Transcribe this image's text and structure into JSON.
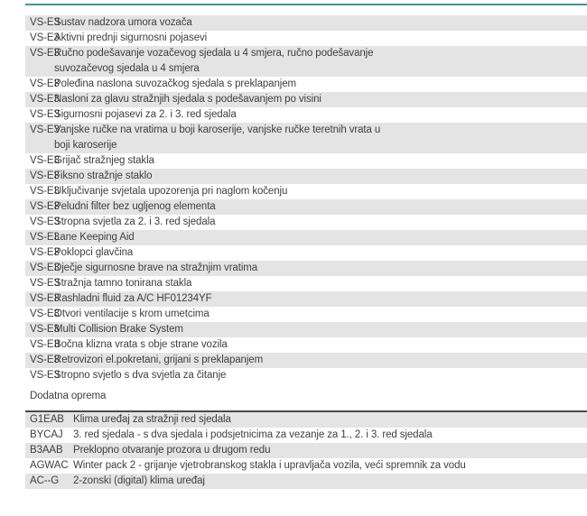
{
  "colors": {
    "accent_teal": "#43939c",
    "row_shade": "#e4e4e4",
    "dark_border": "#4a4a4a",
    "text": "#3f3f3f",
    "page_bg": "#ffffff"
  },
  "section_heading": "Dodatna oprema",
  "standard_equipment": {
    "rows": [
      {
        "code": "VS-E3",
        "description": "Sustav nadzora umora vozača"
      },
      {
        "code": "VS-E3",
        "description": "Aktivni prednji sigurnosni pojasevi"
      },
      {
        "code": "VS-E3",
        "description": "Ručno podešavanje vozačevog sjedala u 4 smjera, ručno podešavanje\nsuvozačevog sjedala u 4 smjera"
      },
      {
        "code": "VS-E3",
        "description": "Poleđina naslona suvozačkog sjedala s preklapanjem"
      },
      {
        "code": "VS-E3",
        "description": "Nasloni za glavu stražnjih sjedala s podešavanjem po visini"
      },
      {
        "code": "VS-E3",
        "description": "Sigurnosni pojasevi za 2. i 3. red sjedala"
      },
      {
        "code": "VS-E3",
        "description": "Vanjske ručke na vratima u boji karoserije, vanjske ručke teretnih vrata u\nboji karoserije"
      },
      {
        "code": "VS-E3",
        "description": "Grijač stražnjeg stakla"
      },
      {
        "code": "VS-E3",
        "description": "Fiksno stražnje staklo"
      },
      {
        "code": "VS-E3",
        "description": "Uključivanje svjetala upozorenja pri naglom kočenju"
      },
      {
        "code": "VS-E3",
        "description": "Peludni filter bez ugljenog elementa"
      },
      {
        "code": "VS-E3",
        "description": "Stropna svjetla za 2. i 3. red sjedala"
      },
      {
        "code": "VS-E3",
        "description": "Lane Keeping Aid"
      },
      {
        "code": "VS-E3",
        "description": "Poklopci glavčina"
      },
      {
        "code": "VS-E3",
        "description": "Dječje sigurnosne brave na stražnjim vratima"
      },
      {
        "code": "VS-E3",
        "description": "Stražnja tamno tonirana stakla"
      },
      {
        "code": "VS-E3",
        "description": "Rashladni fluid za A/C HF01234YF"
      },
      {
        "code": "VS-E3",
        "description": "Otvori ventilacije s krom umetcima"
      },
      {
        "code": "VS-E3",
        "description": "Multi Collision Brake System"
      },
      {
        "code": "VS-E3",
        "description": "Bočna klizna vrata s obje strane vozila"
      },
      {
        "code": "VS-E3",
        "description": "Retrovizori el.pokretani, grijani s preklapanjem"
      },
      {
        "code": "VS-E3",
        "description": "Stropno svjetlo s dva svjetla za čitanje"
      }
    ]
  },
  "additional_equipment": {
    "rows": [
      {
        "code": "G1EAB",
        "description": "Klima uređaj za stražnji red sjedala"
      },
      {
        "code": "BYCAJ",
        "description": "3. red sjedala - s dva sjedala i podsjetnicima za vezanje za 1., 2. i 3. red sjedala"
      },
      {
        "code": "B3AAB",
        "description": "Preklopno otvaranje prozora u drugom redu"
      },
      {
        "code": "AGWAC",
        "description": "Winter pack 2 - grijanje vjetrobranskog stakla i upravljača vozila, veći spremnik za vodu"
      },
      {
        "code": "AC--G",
        "description": "2-zonski (digital) klima uređaj"
      }
    ]
  }
}
